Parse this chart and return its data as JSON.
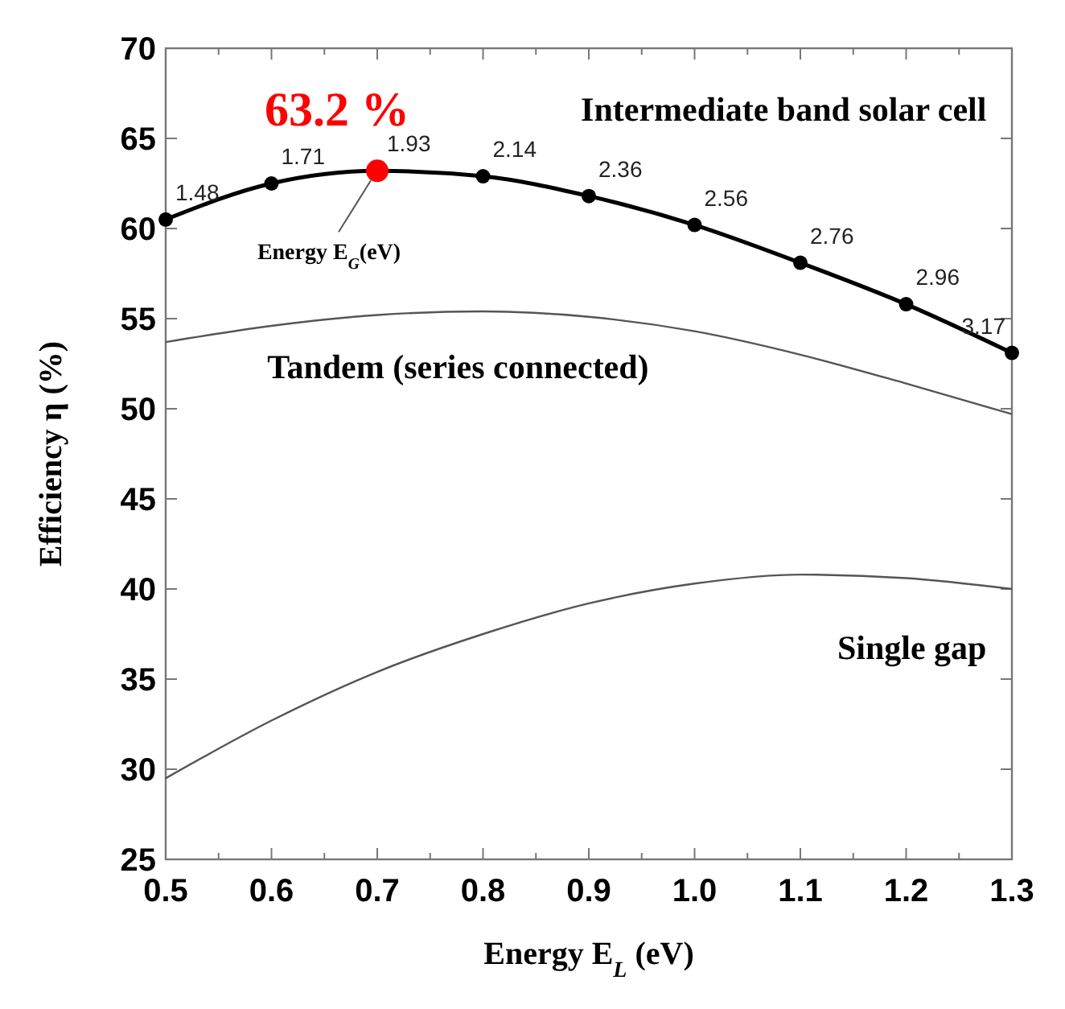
{
  "chart_data": {
    "type": "line",
    "xlabel": "Energy E$_{L}$ (eV)",
    "ylabel": "Efficiency η (%)",
    "x": [
      0.5,
      0.6,
      0.7,
      0.8,
      0.9,
      1.0,
      1.1,
      1.2,
      1.3
    ],
    "xlim": [
      0.5,
      1.3
    ],
    "xticks": [
      {
        "value": 0.5,
        "label": "0.5"
      },
      {
        "value": 0.6,
        "label": "0.6"
      },
      {
        "value": 0.7,
        "label": "0.7"
      },
      {
        "value": 0.8,
        "label": "0.8"
      },
      {
        "value": 0.9,
        "label": "0.9"
      },
      {
        "value": 1.0,
        "label": "1.0"
      },
      {
        "value": 1.1,
        "label": "1.1"
      },
      {
        "value": 1.2,
        "label": "1.2"
      },
      {
        "value": 1.3,
        "label": "1.3"
      }
    ],
    "ylim": [
      25,
      70
    ],
    "yticks": [
      25,
      30,
      35,
      40,
      45,
      50,
      55,
      60,
      65,
      70
    ],
    "series": [
      {
        "name": "Intermediate band solar cell",
        "color": "#000000",
        "marker": "circle",
        "values": [
          60.5,
          62.5,
          63.2,
          62.9,
          61.8,
          60.2,
          58.1,
          55.8,
          53.1
        ]
      },
      {
        "name": "Tandem (series connected)",
        "color": "#555555",
        "marker": "none",
        "values": [
          53.7,
          54.6,
          55.2,
          55.4,
          55.1,
          54.3,
          53.0,
          51.4,
          49.7
        ]
      },
      {
        "name": "Single gap",
        "color": "#555555",
        "marker": "none",
        "values": [
          29.5,
          32.7,
          35.4,
          37.5,
          39.2,
          40.3,
          40.8,
          40.6,
          40.0
        ]
      },
      {
        "type": "scatter",
        "color": "#ff0000",
        "marker": "circle",
        "x": [
          0.7
        ],
        "values": [
          63.2
        ]
      }
    ],
    "annotations": [
      {
        "text": "63.2 %",
        "x": 0.7,
        "y": 63.2
      },
      {
        "text": "Energy E$_{G}$(eV)",
        "x": 0.7,
        "y": 63.2
      },
      {
        "text": "1.48",
        "x": 0.5,
        "y": 60.5
      },
      {
        "text": "1.71",
        "x": 0.6,
        "y": 62.5
      },
      {
        "text": "1.93",
        "x": 0.7,
        "y": 63.2
      },
      {
        "text": "2.14",
        "x": 0.8,
        "y": 62.9
      },
      {
        "text": "2.36",
        "x": 0.9,
        "y": 61.8
      },
      {
        "text": "2.56",
        "x": 1.0,
        "y": 60.2
      },
      {
        "text": "2.76",
        "x": 1.1,
        "y": 58.1
      },
      {
        "text": "2.96",
        "x": 1.2,
        "y": 55.8
      },
      {
        "text": "3.17",
        "x": 1.3,
        "y": 53.1
      }
    ],
    "grid": false
  }
}
